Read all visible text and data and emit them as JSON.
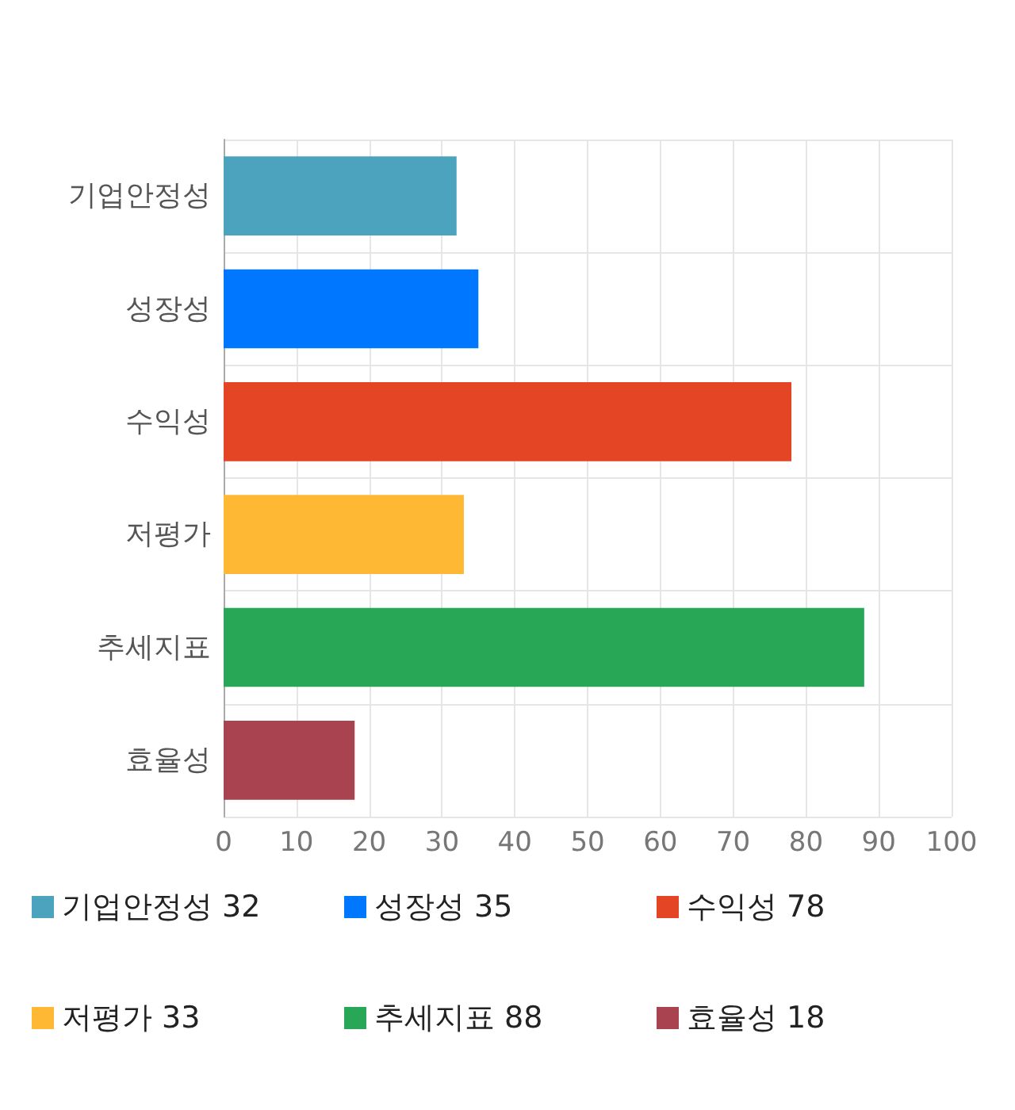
{
  "chart_data": {
    "type": "bar",
    "orientation": "horizontal",
    "stacked": true,
    "categories": [
      "기업안정성",
      "성장성",
      "수익성",
      "저평가",
      "추세지표",
      "효율성"
    ],
    "series": [
      {
        "name": "기업안정성 32",
        "color": "#4ba3bd",
        "values": [
          32,
          null,
          null,
          null,
          null,
          null
        ]
      },
      {
        "name": "성장성 35",
        "color": "#0077ff",
        "values": [
          null,
          35,
          null,
          null,
          null,
          null
        ]
      },
      {
        "name": "수익성 78",
        "color": "#e34525",
        "values": [
          null,
          null,
          78,
          null,
          null,
          null
        ]
      },
      {
        "name": "저평가 33",
        "color": "#ffb833",
        "values": [
          null,
          null,
          null,
          33,
          null,
          null
        ]
      },
      {
        "name": "추세지표 88",
        "color": "#28a757",
        "values": [
          null,
          null,
          null,
          null,
          88,
          null
        ]
      },
      {
        "name": "효율성 18",
        "color": "#a8434f",
        "values": [
          null,
          null,
          null,
          null,
          null,
          18
        ]
      }
    ],
    "xlim": [
      0,
      100
    ],
    "xticks": [
      0,
      10,
      20,
      30,
      40,
      50,
      60,
      70,
      80,
      90,
      100
    ],
    "grid": true,
    "legend": "bottom"
  }
}
